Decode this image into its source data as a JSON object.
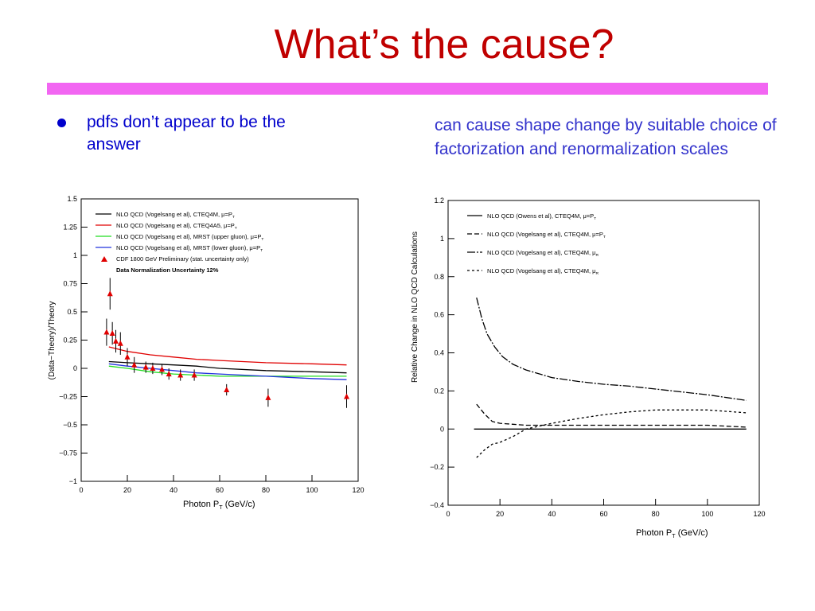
{
  "slide": {
    "title": "What’s the cause?",
    "bullet": "pdfs don’t appear to be the answer",
    "note": "can cause shape change by suitable choice of factorization and renormalization scales",
    "colors": {
      "title": "#c00000",
      "rule": "#f266f2",
      "bullet": "#0000cc",
      "note": "#3333cc"
    }
  },
  "chart_data": [
    {
      "type": "line",
      "xlabel": "Photon P",
      "xlabel_sub": "T",
      "xlabel_units": "(GeV/c)",
      "ylabel": "(Data−Theory)/Theory",
      "xlim": [
        0,
        120
      ],
      "ylim": [
        -1,
        1.5
      ],
      "xticks": [
        0,
        20,
        40,
        60,
        80,
        100,
        120
      ],
      "yticks": [
        -1,
        -0.75,
        -0.5,
        -0.25,
        0,
        0.25,
        0.5,
        0.75,
        1,
        1.25,
        1.5
      ],
      "legend_placement": "top-left",
      "series": [
        {
          "name": "NLO QCD (Vogelsang et al), CTEQ4M, μ=P",
          "name_sub": "T",
          "color": "#000000",
          "x": [
            12,
            20,
            30,
            40,
            50,
            60,
            80,
            100,
            115
          ],
          "y": [
            0.06,
            0.05,
            0.04,
            0.03,
            0.02,
            0.0,
            -0.02,
            -0.03,
            -0.04
          ]
        },
        {
          "name": "NLO QCD (Vogelsang et al), CTEQ4A5, μ=P",
          "name_sub": "T",
          "color": "#e00000",
          "x": [
            12,
            20,
            30,
            40,
            50,
            60,
            80,
            100,
            115
          ],
          "y": [
            0.19,
            0.15,
            0.12,
            0.1,
            0.08,
            0.07,
            0.05,
            0.04,
            0.03
          ]
        },
        {
          "name": "NLO QCD (Vogelsang et al), MRST (upper gluon), μ=P",
          "name_sub": "T",
          "color": "#22dd22",
          "x": [
            12,
            20,
            30,
            40,
            50,
            60,
            80,
            100,
            115
          ],
          "y": [
            0.02,
            0.0,
            -0.03,
            -0.05,
            -0.06,
            -0.07,
            -0.07,
            -0.07,
            -0.07
          ]
        },
        {
          "name": "NLO QCD (Vogelsang et al), MRST (lower gluon), μ=P",
          "name_sub": "T",
          "color": "#2233dd",
          "x": [
            12,
            20,
            30,
            40,
            50,
            60,
            80,
            100,
            115
          ],
          "y": [
            0.04,
            0.02,
            0.0,
            -0.02,
            -0.04,
            -0.05,
            -0.07,
            -0.09,
            -0.1
          ]
        },
        {
          "name": "CDF 1800 GeV Preliminary (stat. uncertainty only)",
          "color": "#e00000",
          "marker": "triangle",
          "x": [
            11,
            12.5,
            13.5,
            15,
            17,
            20,
            23,
            28,
            31,
            35,
            38,
            43,
            49,
            63,
            81,
            115
          ],
          "y": [
            0.32,
            0.66,
            0.31,
            0.24,
            0.22,
            0.1,
            0.03,
            0.01,
            0.0,
            -0.01,
            -0.05,
            -0.06,
            -0.06,
            -0.19,
            -0.26,
            -0.25
          ],
          "yerr": [
            0.12,
            0.14,
            0.1,
            0.1,
            0.1,
            0.08,
            0.07,
            0.05,
            0.05,
            0.05,
            0.05,
            0.05,
            0.05,
            0.05,
            0.08,
            0.1
          ]
        }
      ],
      "annotation": "Data Normalization Uncertainty 12%"
    },
    {
      "type": "line",
      "xlabel": "Photon P",
      "xlabel_sub": "T",
      "xlabel_units": "(GeV/c)",
      "ylabel": "Relative Change in NLO QCD Calculations",
      "xlim": [
        0,
        120
      ],
      "ylim": [
        -0.4,
        1.2
      ],
      "xticks": [
        0,
        20,
        40,
        60,
        80,
        100,
        120
      ],
      "yticks": [
        -0.4,
        -0.2,
        0,
        0.2,
        0.4,
        0.6,
        0.8,
        1,
        1.2
      ],
      "legend_placement": "top-left",
      "series": [
        {
          "name": "NLO QCD (Owens et al), CTEQ4M, μ=P",
          "name_sub": "T",
          "dash": "",
          "x": [
            10,
            115
          ],
          "y": [
            0,
            0
          ]
        },
        {
          "name": "NLO QCD (Vogelsang et al), CTEQ4M, μ=P",
          "name_sub": "T",
          "dash": "6,3",
          "x": [
            11,
            14,
            17,
            20,
            25,
            30,
            40,
            50,
            60,
            70,
            80,
            90,
            100,
            115
          ],
          "y": [
            0.13,
            0.08,
            0.04,
            0.03,
            0.025,
            0.02,
            0.02,
            0.02,
            0.02,
            0.02,
            0.02,
            0.02,
            0.02,
            0.01
          ]
        },
        {
          "name": "NLO QCD (Vogelsang et al), CTEQ4M, μ",
          "name_sub": "R",
          "dash": "10,2,2,2",
          "x": [
            11,
            13,
            15,
            18,
            21,
            25,
            30,
            40,
            50,
            60,
            70,
            80,
            90,
            100,
            115
          ],
          "y": [
            0.69,
            0.58,
            0.5,
            0.43,
            0.38,
            0.34,
            0.31,
            0.27,
            0.25,
            0.235,
            0.225,
            0.21,
            0.195,
            0.18,
            0.15
          ]
        },
        {
          "name": "NLO QCD (Vogelsang et al), CTEQ4M, μ",
          "name_sub": "R",
          "dash": "3,3",
          "x": [
            11,
            14,
            17,
            20,
            25,
            30,
            35,
            40,
            50,
            60,
            70,
            80,
            90,
            100,
            115
          ],
          "y": [
            -0.15,
            -0.11,
            -0.08,
            -0.07,
            -0.04,
            0.0,
            0.015,
            0.03,
            0.055,
            0.075,
            0.09,
            0.1,
            0.1,
            0.1,
            0.085
          ]
        }
      ],
      "legend_text": [
        "NLO QCD (Owens et al), CTEQ4M, μ=P",
        "NLO QCD (Vogelsang et al), CTEQ4M, μ=P",
        "NLO QCD (Vogelsang et al), CTEQ4M, μ",
        "NLO QCD (Vogelsang et al), CTEQ4M, μ"
      ]
    }
  ]
}
